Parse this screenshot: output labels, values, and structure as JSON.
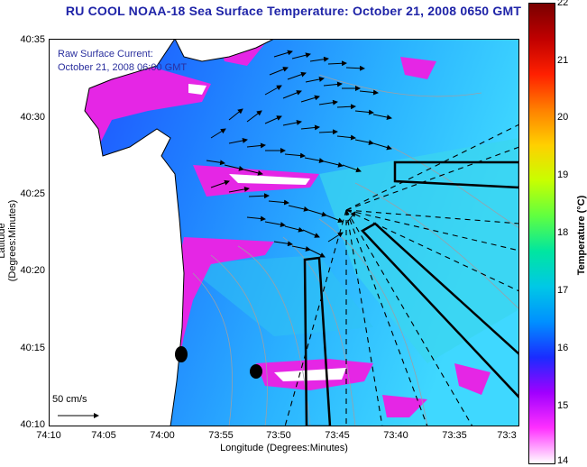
{
  "title": "RU COOL  NOAA-18  Sea Surface Temperature:  October 21, 2008 0650 GMT",
  "legend": {
    "line1": "Raw Surface Current:",
    "line2": "October 21, 2008 06:00 GMT"
  },
  "scale": {
    "label": "50 cm/s"
  },
  "axes": {
    "x_label": "Longitude (Degrees:Minutes)",
    "y_label": "Latitude (Degrees:Minutes)",
    "x_ticks": [
      "74:10",
      "74:05",
      "74:00",
      "73:55",
      "73:50",
      "73:45",
      "73:40",
      "73:35",
      "73:3"
    ],
    "y_ticks": [
      "40:35",
      "40:30",
      "40:25",
      "40:20",
      "40:15",
      "40:10"
    ]
  },
  "colorbar": {
    "label": "Temperature (°C)",
    "ticks": [
      "22",
      "21",
      "20",
      "19",
      "18",
      "17",
      "16",
      "15",
      "14"
    ],
    "range": [
      14,
      22
    ],
    "colors": [
      "#7a0000",
      "#c00000",
      "#ff2000",
      "#ff8000",
      "#ffd000",
      "#c8ff00",
      "#60ff40",
      "#00e6a0",
      "#00c8e6",
      "#0090ff",
      "#1a2cff",
      "#a000ff",
      "#ff30ff",
      "#ffffff"
    ]
  },
  "map_colors": {
    "water_deep": "#1f5cff",
    "water_mid": "#24a8ff",
    "water_light": "#3bd8f0",
    "cold": "#e020e0",
    "cold_core": "#ffffff",
    "land": "#ffffff",
    "coast": "#000000",
    "bathymetry": "#9aa0a8",
    "vector": "#000000",
    "transect": "#000000"
  }
}
